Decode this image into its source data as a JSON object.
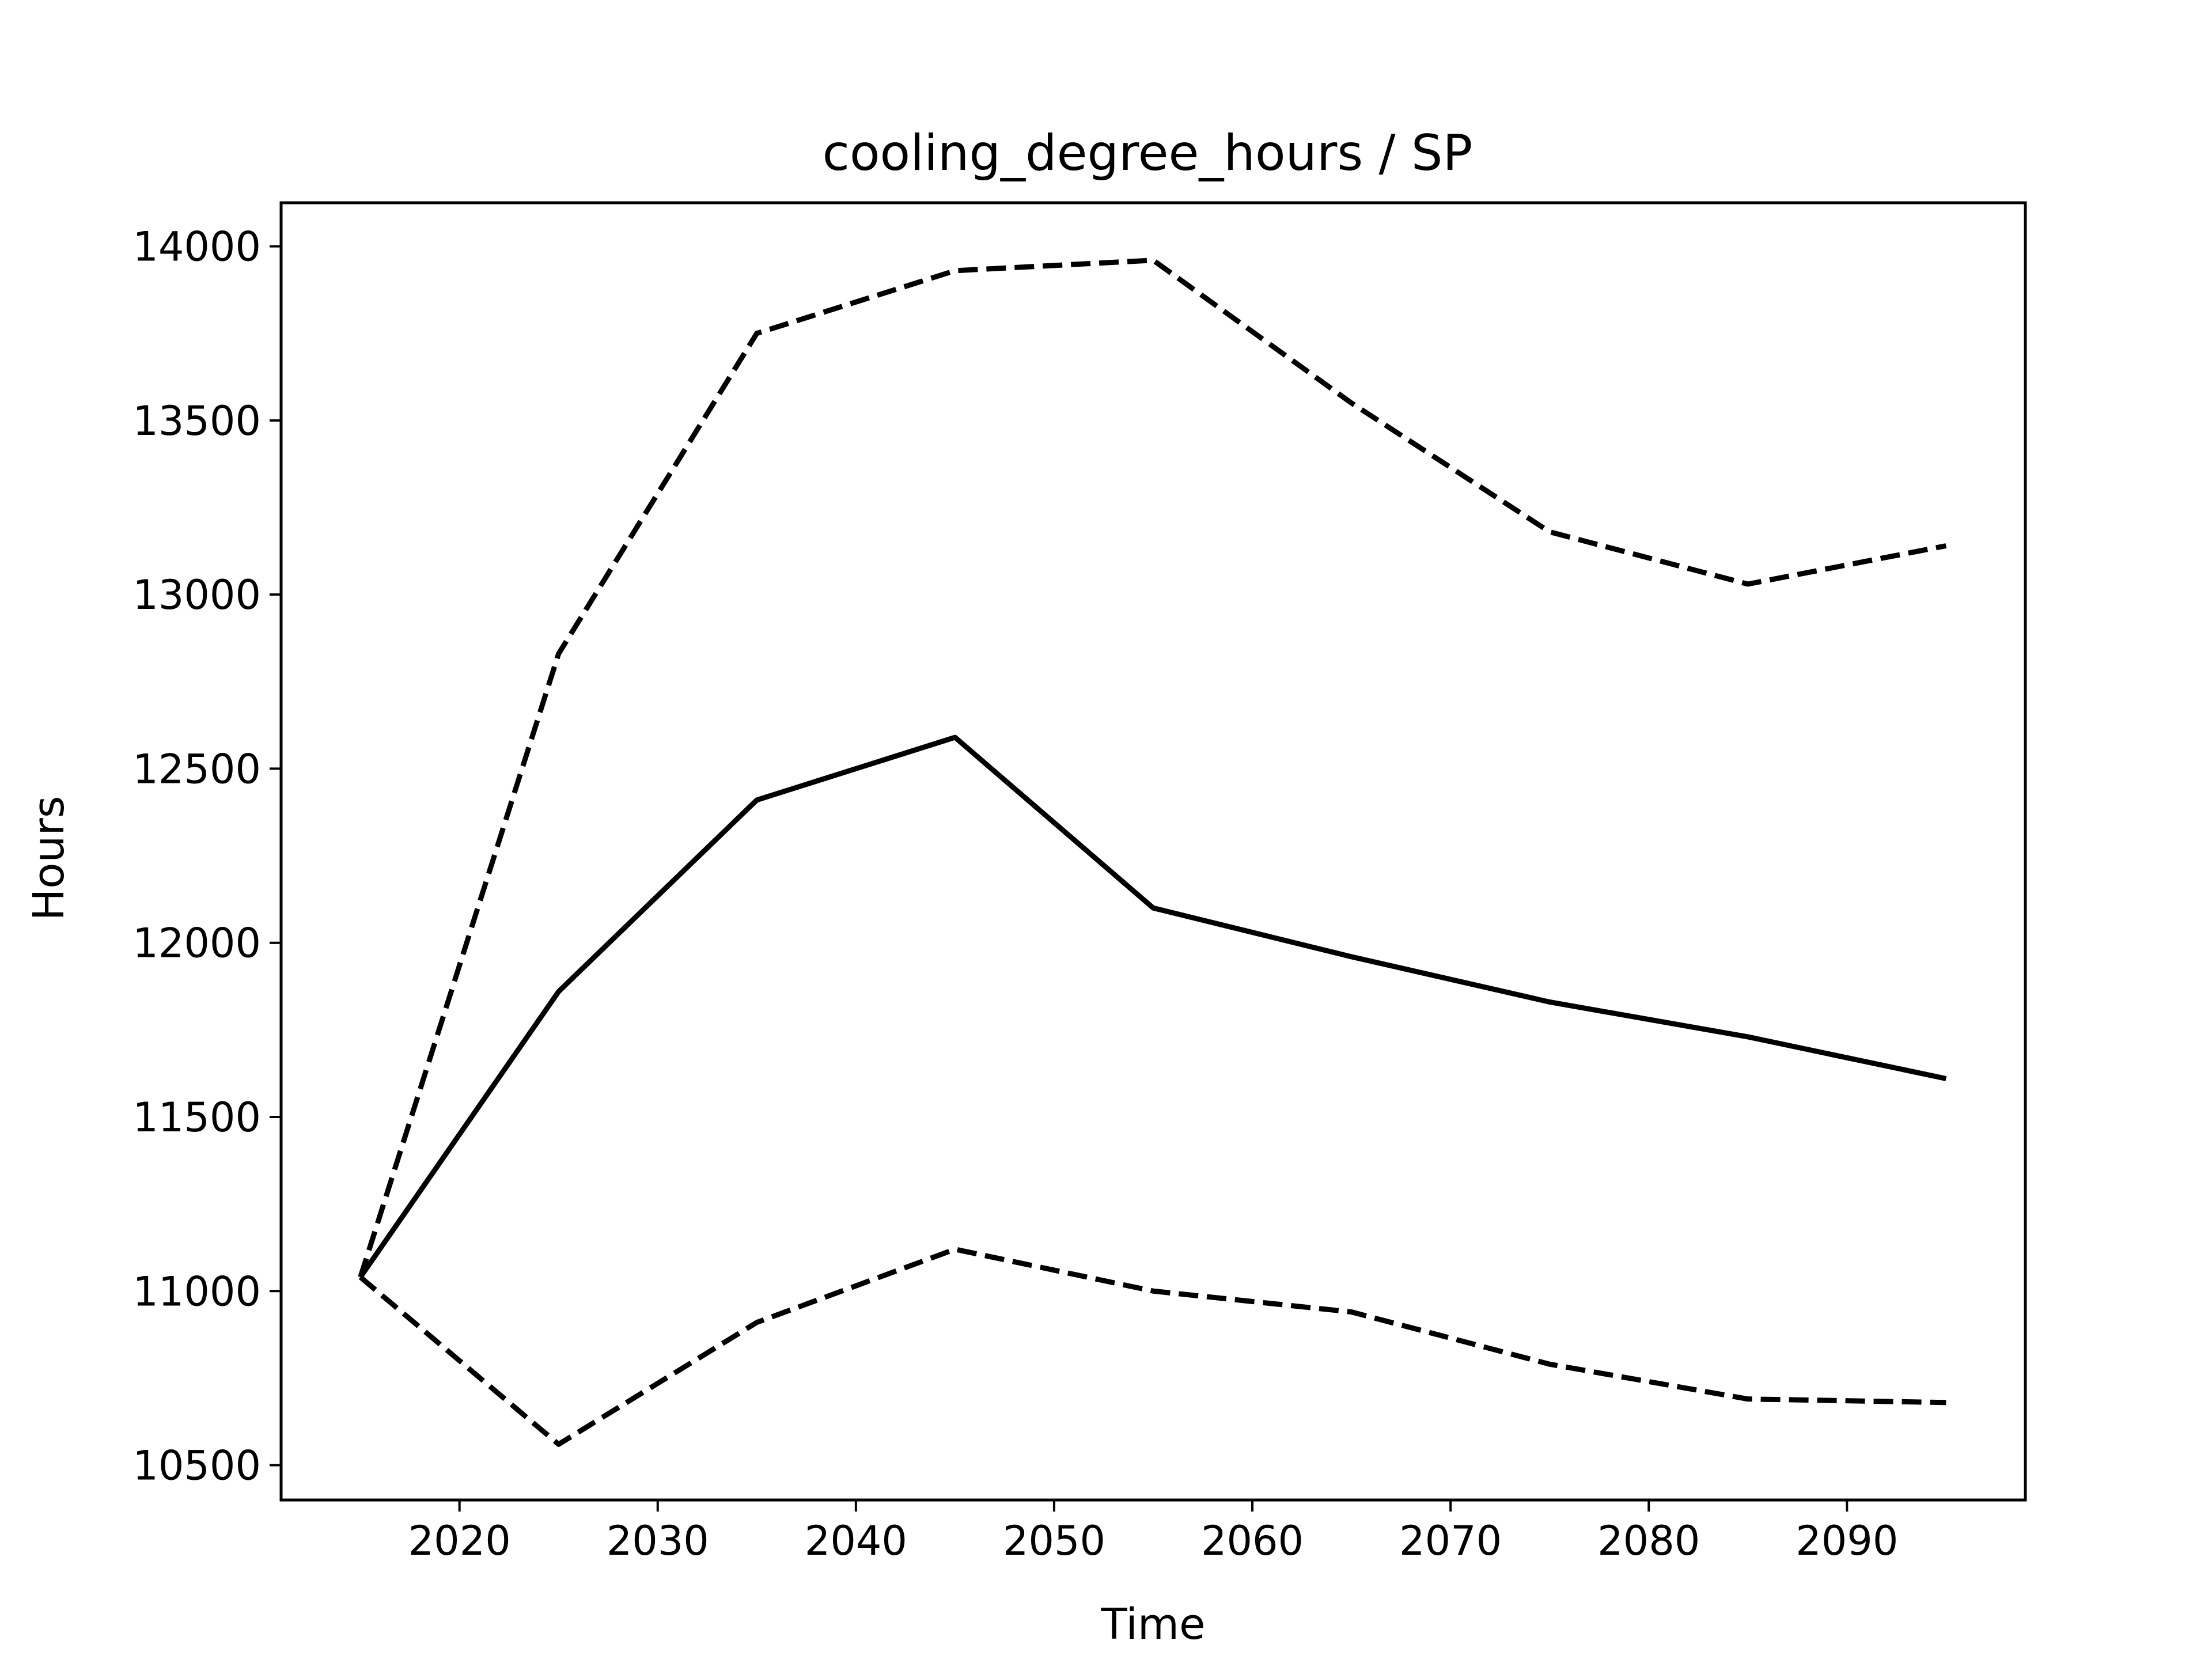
{
  "chart_data": {
    "type": "line",
    "title": "cooling_degree_hours / SP",
    "xlabel": "Time",
    "ylabel": "Hours",
    "x": [
      2015,
      2025,
      2035,
      2045,
      2055,
      2065,
      2075,
      2085,
      2095
    ],
    "xlim": [
      2011,
      2099
    ],
    "ylim": [
      10400,
      14125
    ],
    "xticks": [
      2020,
      2030,
      2040,
      2050,
      2060,
      2070,
      2080,
      2090
    ],
    "yticks": [
      10500,
      11000,
      11500,
      12000,
      12500,
      13000,
      13500,
      14000
    ],
    "grid": false,
    "series": [
      {
        "style": "solid",
        "color": "#000000",
        "values": [
          11040,
          11860,
          12410,
          12590,
          12100,
          11960,
          11830,
          11730,
          11610
        ]
      },
      {
        "style": "dashed",
        "color": "#000000",
        "values": [
          11040,
          12830,
          13750,
          13930,
          13960,
          13550,
          13180,
          13030,
          13140
        ]
      },
      {
        "style": "dashed",
        "color": "#000000",
        "values": [
          11040,
          10560,
          10910,
          11120,
          11000,
          10940,
          10790,
          10690,
          10680
        ]
      }
    ]
  }
}
